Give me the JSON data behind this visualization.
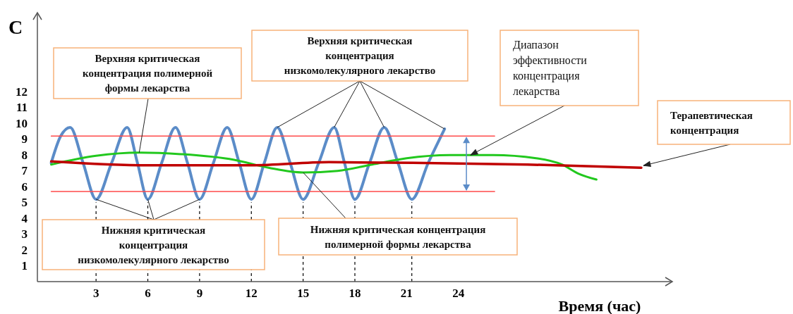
{
  "chart_data": {
    "type": "line",
    "ylabel": "C",
    "xlabel": "Время (час)",
    "xlim": [
      -0.4,
      36.4
    ],
    "ylim": [
      0,
      17
    ],
    "xticks": [
      3,
      6,
      9,
      12,
      15,
      18,
      21,
      24
    ],
    "yticks": [
      1,
      2,
      3,
      4,
      5,
      6,
      7,
      8,
      9,
      10,
      11,
      12
    ],
    "grid": false,
    "marker": "none",
    "line_style": "solid",
    "series": [
      {
        "color": "#5b8cc8",
        "x": [
          0.4,
          0.95,
          1.5,
          2.25,
          3,
          3.9,
          4.8,
          5.4,
          6,
          6.8,
          7.6,
          8.3,
          9,
          9.8,
          10.6,
          11.3,
          12,
          12.75,
          13.5,
          14.25,
          15,
          15.9,
          16.8,
          17.4,
          18,
          18.85,
          19.7,
          20.5,
          21.3,
          22.25,
          23.2
        ],
        "values": [
          7.5,
          9.2,
          9.75,
          7.5,
          5.2,
          7.5,
          9.75,
          7.5,
          5.2,
          7.5,
          9.75,
          7.5,
          5.2,
          7.5,
          9.75,
          7.5,
          5.2,
          7.5,
          9.75,
          7.5,
          5.2,
          7.5,
          9.75,
          7.5,
          5.2,
          7.5,
          9.75,
          7.5,
          5.2,
          7.5,
          9.65
        ]
      },
      {
        "color": "#ff4a4a",
        "x": [
          0.4,
          26.1
        ],
        "values": [
          9.2,
          9.2
        ]
      },
      {
        "color": "#ff4a4a",
        "x": [
          0.4,
          26.1
        ],
        "values": [
          5.7,
          5.7
        ]
      },
      {
        "color": "#22c81e",
        "x": [
          0.4,
          3,
          5.5,
          8,
          11,
          13,
          15,
          17,
          19,
          21,
          23.5,
          26,
          28.5,
          30,
          31,
          32
        ],
        "values": [
          7.4,
          7.95,
          8.15,
          8.05,
          7.7,
          7.2,
          6.9,
          7.0,
          7.4,
          7.8,
          8.0,
          8.0,
          7.8,
          7.4,
          6.8,
          6.45
        ]
      },
      {
        "color": "#c00000",
        "x": [
          0.4,
          6,
          12,
          16.5,
          22,
          28,
          34.6
        ],
        "values": [
          7.6,
          7.35,
          7.35,
          7.55,
          7.5,
          7.4,
          7.2
        ]
      }
    ],
    "annotations": [
      {
        "text": "Верхняя критическая концентрация полимерной формы лекарства",
        "x": 5.5,
        "y": 8.15
      },
      {
        "text": "Верхняя критическая концентрация низкомолекулярного лекарство",
        "x": 13.5,
        "y": 9.75
      },
      {
        "text": "Диапазон эффективности концентрация лекарства",
        "x": 24.7,
        "y": 8.0
      },
      {
        "text": "Терапевтическая концентрация",
        "x": 34.6,
        "y": 7.2
      },
      {
        "text": "Нижняя критическая концентрация низкомолекулярного лекарство",
        "x": 3,
        "y": 5.2
      },
      {
        "text": "Нижняя критическая концентрация полимерной формы лекарства",
        "x": 15,
        "y": 6.9
      }
    ]
  }
}
